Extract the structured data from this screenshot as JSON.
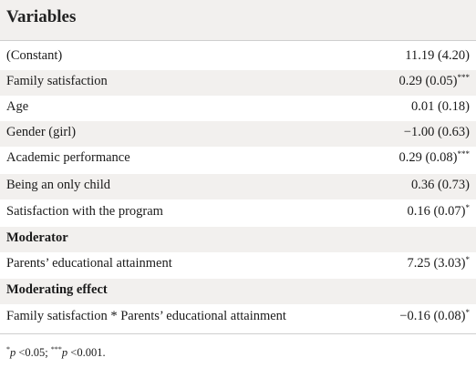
{
  "table": {
    "header": "Variables",
    "rows": [
      {
        "label": "(Constant)",
        "value": "11.19 (4.20)",
        "sig": ""
      },
      {
        "label": "Family satisfaction",
        "value": "0.29 (0.05)",
        "sig": "***"
      },
      {
        "label": "Age",
        "value": "0.01 (0.18)",
        "sig": ""
      },
      {
        "label": "Gender (girl)",
        "value": "−1.00 (0.63)",
        "sig": ""
      },
      {
        "label": "Academic performance",
        "value": "0.29 (0.08)",
        "sig": "***"
      },
      {
        "label": "Being an only child",
        "value": "0.36 (0.73)",
        "sig": ""
      },
      {
        "label": "Satisfaction with the program",
        "value": "0.16 (0.07)",
        "sig": "*"
      }
    ],
    "moderator_section": "Moderator",
    "moderator_row": {
      "label": "Parents’ educational attainment",
      "value": "7.25 (3.03)",
      "sig": "*"
    },
    "effect_section": "Moderating effect",
    "effect_row": {
      "label": "Family satisfaction * Parents’ educational attainment",
      "value": "−0.16 (0.08)",
      "sig": "*"
    }
  },
  "footnote": {
    "sup1": "*",
    "p1_letter": "p",
    "p1_text": " <0.05; ",
    "sup2": "***",
    "p2_letter": "p",
    "p2_text": " <0.001."
  }
}
